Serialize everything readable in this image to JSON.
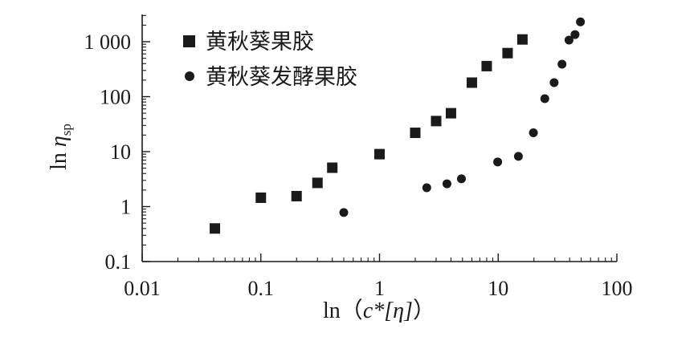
{
  "chart_data": {
    "type": "scatter",
    "x_scale": "log",
    "y_scale": "log",
    "xlim": [
      0.01,
      100
    ],
    "ylim": [
      0.1,
      3000
    ],
    "x_ticks": [
      {
        "value": 0.01,
        "label": "0.01"
      },
      {
        "value": 0.1,
        "label": "0.1"
      },
      {
        "value": 1,
        "label": "1"
      },
      {
        "value": 10,
        "label": "10"
      },
      {
        "value": 100,
        "label": "100"
      }
    ],
    "y_ticks": [
      {
        "value": 0.1,
        "label": "0.1"
      },
      {
        "value": 1,
        "label": "1"
      },
      {
        "value": 10,
        "label": "10"
      },
      {
        "value": 100,
        "label": "100"
      },
      {
        "value": 1000,
        "label": "1 000"
      }
    ],
    "xlabel": {
      "prefix": "ln（",
      "var": "c*[η]",
      "suffix": "）"
    },
    "ylabel": {
      "prefix": "ln ",
      "var": "η",
      "sub": "sp"
    },
    "legend_position": "top-left",
    "grid": false,
    "series": [
      {
        "name": "黄秋葵果胶",
        "marker": "square",
        "color": "#1a1a1a",
        "points": [
          [
            0.041,
            0.4
          ],
          [
            0.1,
            1.45
          ],
          [
            0.2,
            1.55
          ],
          [
            0.3,
            2.7
          ],
          [
            0.4,
            5.1
          ],
          [
            1.0,
            9.0
          ],
          [
            2.0,
            22.0
          ],
          [
            3.0,
            36.0
          ],
          [
            4.0,
            50.0
          ],
          [
            6.0,
            180.0
          ],
          [
            8.0,
            360.0
          ],
          [
            12.0,
            620.0
          ],
          [
            16.0,
            1100.0
          ]
        ]
      },
      {
        "name": "黄秋葵发酵果胶",
        "marker": "circle",
        "color": "#1a1a1a",
        "points": [
          [
            0.5,
            0.78
          ],
          [
            2.5,
            2.2
          ],
          [
            3.7,
            2.6
          ],
          [
            4.9,
            3.2
          ],
          [
            9.9,
            6.5
          ],
          [
            14.8,
            8.2
          ],
          [
            19.8,
            22.0
          ],
          [
            24.7,
            92.0
          ],
          [
            29.6,
            180.0
          ],
          [
            34.5,
            390.0
          ],
          [
            39.5,
            1070.0
          ],
          [
            44.4,
            1350.0
          ],
          [
            49.3,
            2300.0
          ]
        ]
      }
    ]
  }
}
